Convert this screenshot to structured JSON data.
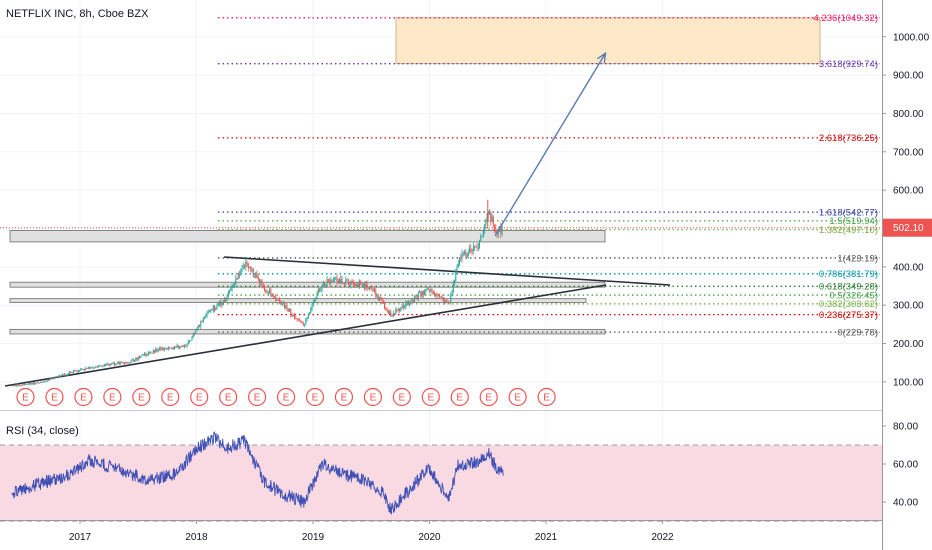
{
  "header": {
    "symbol_title": "NETFLIX INC, 8h, Cboe BZX"
  },
  "colors": {
    "background": "#ffffff",
    "candle_up": "#26a69a",
    "candle_down": "#ef5350",
    "rsi_line": "#3f51b5",
    "rsi_band": "#f9d9e2",
    "target_box": "#fde9c8",
    "zone_box": "#e0e0e0",
    "arrow": "#5b7bb2"
  },
  "price_axis": {
    "ticks": [
      "1000.00",
      "900.00",
      "800.00",
      "700.00",
      "600.00",
      "500.00",
      "400.00",
      "300.00",
      "200.00",
      "100.00"
    ],
    "last_price_label": "502.10"
  },
  "rsi_panel": {
    "label": "RSI (34, close)",
    "ticks": [
      "80.00",
      "60.00",
      "40.00"
    ]
  },
  "time_axis": {
    "ticks": [
      "2017",
      "2018",
      "2019",
      "2020",
      "2021",
      "2022"
    ]
  },
  "earnings_marker": {
    "symbol": "E",
    "count": 19
  },
  "chart_data": [
    {
      "type": "candlestick",
      "title": "NETFLIX INC, 8h, Cboe BZX",
      "ylim": [
        0,
        1100
      ],
      "y_ticks": [
        100,
        200,
        300,
        400,
        500,
        600,
        700,
        800,
        900,
        1000
      ],
      "x_ticks": [
        "2017",
        "2018",
        "2019",
        "2020",
        "2021",
        "2022"
      ],
      "last_price": 502.1,
      "price_path": [
        [
          "2016-06",
          90
        ],
        [
          "2016-09",
          98
        ],
        [
          "2016-12",
          125
        ],
        [
          "2017-03",
          142
        ],
        [
          "2017-06",
          152
        ],
        [
          "2017-09",
          185
        ],
        [
          "2017-12",
          195
        ],
        [
          "2018-02",
          280
        ],
        [
          "2018-04",
          315
        ],
        [
          "2018-06",
          410
        ],
        [
          "2018-08",
          345
        ],
        [
          "2018-10",
          300
        ],
        [
          "2018-12",
          245
        ],
        [
          "2019-02",
          360
        ],
        [
          "2019-04",
          365
        ],
        [
          "2019-07",
          345
        ],
        [
          "2019-09",
          275
        ],
        [
          "2019-11",
          310
        ],
        [
          "2020-01",
          345
        ],
        [
          "2020-03",
          300
        ],
        [
          "2020-04",
          420
        ],
        [
          "2020-06",
          455
        ],
        [
          "2020-07",
          540
        ],
        [
          "2020-08",
          495
        ]
      ],
      "fibonacci_levels": [
        {
          "label": "4.236(1049.32)",
          "value": 1049.32,
          "color": "#e91e63"
        },
        {
          "label": "3.618(929.74)",
          "value": 929.74,
          "color": "#673ab7"
        },
        {
          "label": "2.618(736.25)",
          "value": 736.25,
          "color": "#d50000"
        },
        {
          "label": "1.618(542.77)",
          "value": 542.77,
          "color": "#303f9f"
        },
        {
          "label": "1.5(519.94)",
          "value": 519.94,
          "color": "#43a047"
        },
        {
          "label": "1.382(497.10)",
          "value": 497.1,
          "color": "#7cb342"
        },
        {
          "label": "1(423.19)",
          "value": 423.19,
          "color": "#555555"
        },
        {
          "label": "0.786(381.79)",
          "value": 381.79,
          "color": "#0097a7"
        },
        {
          "label": "0.618(349.28)",
          "value": 349.28,
          "color": "#2e7d32"
        },
        {
          "label": "0.5(326.45)",
          "value": 326.45,
          "color": "#43a047"
        },
        {
          "label": "0.382(303.62)",
          "value": 303.62,
          "color": "#7cb342"
        },
        {
          "label": "0.236(275.37)",
          "value": 275.37,
          "color": "#d50000"
        },
        {
          "label": "0(229.78)",
          "value": 229.78,
          "color": "#555555"
        }
      ],
      "zones": [
        [
          465,
          495
        ],
        [
          347,
          360
        ],
        [
          307,
          317
        ],
        [
          225,
          237
        ]
      ]
    },
    {
      "type": "line",
      "title": "RSI (34, close)",
      "ylim": [
        30,
        85
      ],
      "y_ticks": [
        40,
        60,
        80
      ],
      "band": [
        30,
        70
      ],
      "rsi_path": [
        [
          "2016-06",
          45
        ],
        [
          "2016-09",
          50
        ],
        [
          "2016-12",
          54
        ],
        [
          "2017-02",
          62
        ],
        [
          "2017-05",
          57
        ],
        [
          "2017-08",
          52
        ],
        [
          "2017-11",
          55
        ],
        [
          "2018-01",
          68
        ],
        [
          "2018-03",
          74
        ],
        [
          "2018-04",
          68
        ],
        [
          "2018-06",
          72
        ],
        [
          "2018-08",
          50
        ],
        [
          "2018-10",
          44
        ],
        [
          "2018-12",
          40
        ],
        [
          "2019-02",
          60
        ],
        [
          "2019-04",
          55
        ],
        [
          "2019-06",
          52
        ],
        [
          "2019-08",
          46
        ],
        [
          "2019-09",
          36
        ],
        [
          "2019-11",
          47
        ],
        [
          "2020-01",
          58
        ],
        [
          "2020-03",
          42
        ],
        [
          "2020-04",
          60
        ],
        [
          "2020-06",
          61
        ],
        [
          "2020-07",
          66
        ],
        [
          "2020-08",
          57
        ]
      ]
    }
  ]
}
